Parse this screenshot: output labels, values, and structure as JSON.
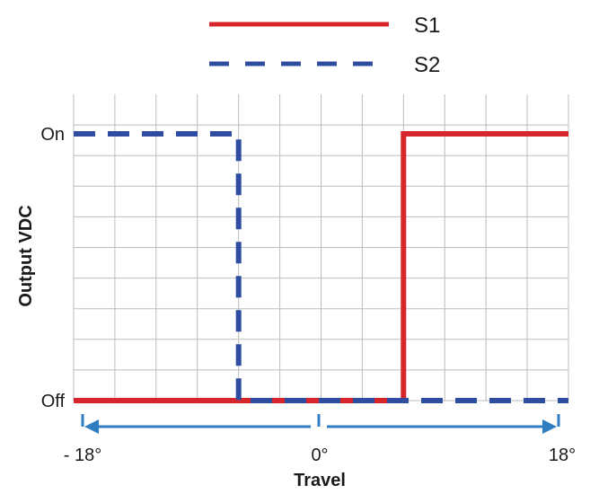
{
  "chart_data": {
    "type": "line",
    "title": "",
    "xlabel": "Travel",
    "ylabel": "Output VDC",
    "xlim": [
      -18,
      18
    ],
    "y_levels": [
      "Off",
      "On"
    ],
    "x_ticks": [
      {
        "value": -18,
        "label": "- 18°"
      },
      {
        "value": 0,
        "label": "0°"
      },
      {
        "value": 18,
        "label": "18°"
      }
    ],
    "y_ticks": [
      {
        "value": 0,
        "label": "Off"
      },
      {
        "value": 1,
        "label": "On"
      }
    ],
    "grid": true,
    "legend_position": "top-right",
    "series": [
      {
        "name": "S1",
        "style": "solid",
        "color": "#d7262b",
        "points": [
          [
            -18,
            0
          ],
          [
            6,
            0
          ],
          [
            6,
            1
          ],
          [
            18,
            1
          ]
        ]
      },
      {
        "name": "S2",
        "style": "dashed",
        "color": "#2e4da0",
        "points": [
          [
            -18,
            1
          ],
          [
            -6,
            1
          ],
          [
            -6,
            0
          ],
          [
            18,
            0
          ]
        ]
      }
    ],
    "travel_arrow_color": "#2f7ec1"
  }
}
